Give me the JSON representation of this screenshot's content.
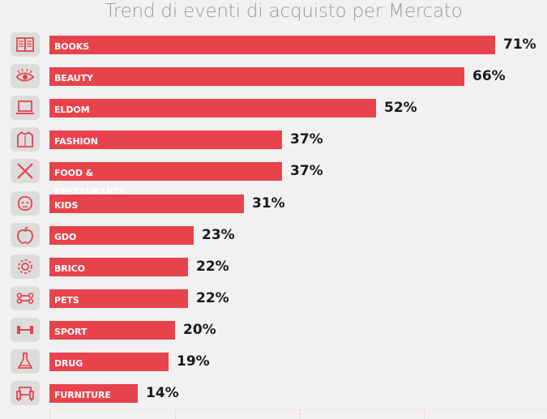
{
  "colors": {
    "bar": "#e8434c",
    "icon_bg": "#dcdcdc",
    "icon": "#e8434c",
    "background": "#f2f1f1"
  },
  "chart_data": {
    "type": "bar",
    "orientation": "horizontal",
    "title": "Trend di eventi di acquisto per Mercato",
    "categories": [
      "BOOKS",
      "BEAUTY",
      "ELDOM",
      "FASHION",
      "FOOD & RESTAURANTS",
      "KIDS",
      "GDO",
      "BRICO",
      "PETS",
      "SPORT",
      "DRUG",
      "FURNITURE"
    ],
    "values": [
      71,
      66,
      52,
      37,
      37,
      31,
      23,
      22,
      22,
      20,
      19,
      14
    ],
    "value_labels": [
      "71%",
      "66%",
      "52%",
      "37%",
      "37%",
      "31%",
      "23%",
      "22%",
      "22%",
      "20%",
      "19%",
      "14%"
    ],
    "icons": [
      "book-icon",
      "eye-makeup-icon",
      "laptop-icon",
      "shirt-icon",
      "fork-knife-icon",
      "baby-icon",
      "apple-icon",
      "gear-icon",
      "bone-icon",
      "dumbbell-icon",
      "flask-icon",
      "armchair-icon"
    ],
    "unit": "%",
    "xlim": [
      0,
      80
    ],
    "grid": false,
    "legend": "none"
  }
}
